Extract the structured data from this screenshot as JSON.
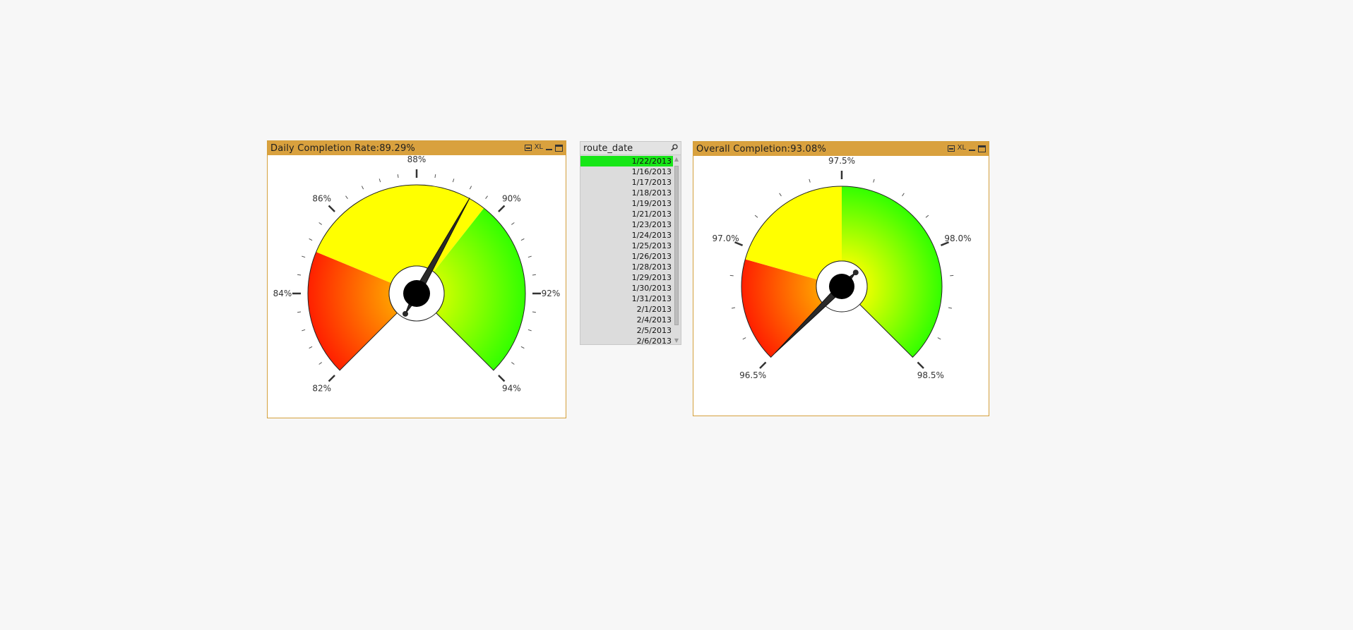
{
  "gauge_daily": {
    "title": "Daily  Completion  Rate:89.29%",
    "xl_label": "XL",
    "value": 89.29,
    "min": 82,
    "max": 94,
    "major_ticks": [
      {
        "value": 82,
        "label": "82%"
      },
      {
        "value": 84,
        "label": "84%"
      },
      {
        "value": 86,
        "label": "86%"
      },
      {
        "value": 88,
        "label": "88%"
      },
      {
        "value": 90,
        "label": "90%"
      },
      {
        "value": 92,
        "label": "92%"
      },
      {
        "value": 94,
        "label": "94%"
      }
    ],
    "minor_per_major": 5,
    "segments": [
      {
        "from": 82,
        "to": 85,
        "color_outer": "#ff2000",
        "color_inner": "#ff9c00"
      },
      {
        "from": 85,
        "to": 89.7,
        "color_outer": "#ffff00",
        "color_inner": "#ffff00"
      },
      {
        "from": 89.7,
        "to": 94,
        "color_outer": "#33ff00",
        "color_inner": "#c8ff00"
      }
    ]
  },
  "gauge_overall": {
    "title": "Overall  Completion:93.08%",
    "xl_label": "XL",
    "value": 93.08,
    "min": 96.5,
    "max": 98.5,
    "major_ticks": [
      {
        "value": 96.5,
        "label": "96.5%"
      },
      {
        "value": 97.0,
        "label": "97.0%"
      },
      {
        "value": 97.5,
        "label": "97.5%"
      },
      {
        "value": 98.0,
        "label": "98.0%"
      },
      {
        "value": 98.5,
        "label": "98.5%"
      }
    ],
    "minor_per_major": 4,
    "segments": [
      {
        "from": 96.5,
        "to": 96.95,
        "color_outer": "#ff2000",
        "color_inner": "#ff9c00"
      },
      {
        "from": 96.95,
        "to": 97.5,
        "color_outer": "#ffff00",
        "color_inner": "#ffff00"
      },
      {
        "from": 97.5,
        "to": 98.5,
        "color_outer": "#33ff00",
        "color_inner": "#e8ff00"
      }
    ]
  },
  "listbox": {
    "title": "route_date",
    "items": [
      {
        "label": "1/22/2013",
        "selected": true
      },
      {
        "label": "1/16/2013",
        "selected": false
      },
      {
        "label": "1/17/2013",
        "selected": false
      },
      {
        "label": "1/18/2013",
        "selected": false
      },
      {
        "label": "1/19/2013",
        "selected": false
      },
      {
        "label": "1/21/2013",
        "selected": false
      },
      {
        "label": "1/23/2013",
        "selected": false
      },
      {
        "label": "1/24/2013",
        "selected": false
      },
      {
        "label": "1/25/2013",
        "selected": false
      },
      {
        "label": "1/26/2013",
        "selected": false
      },
      {
        "label": "1/28/2013",
        "selected": false
      },
      {
        "label": "1/29/2013",
        "selected": false
      },
      {
        "label": "1/30/2013",
        "selected": false
      },
      {
        "label": "1/31/2013",
        "selected": false
      },
      {
        "label": "2/1/2013",
        "selected": false
      },
      {
        "label": "2/4/2013",
        "selected": false
      },
      {
        "label": "2/5/2013",
        "selected": false
      },
      {
        "label": "2/6/2013",
        "selected": false
      }
    ]
  },
  "colors": {
    "caption_bar": "#d9a13e",
    "selected_item": "#17e617",
    "needle": "#2a2a2a"
  },
  "icons": [
    "print-icon",
    "xl-export-icon",
    "minimize-icon",
    "maximize-icon",
    "search-icon"
  ]
}
